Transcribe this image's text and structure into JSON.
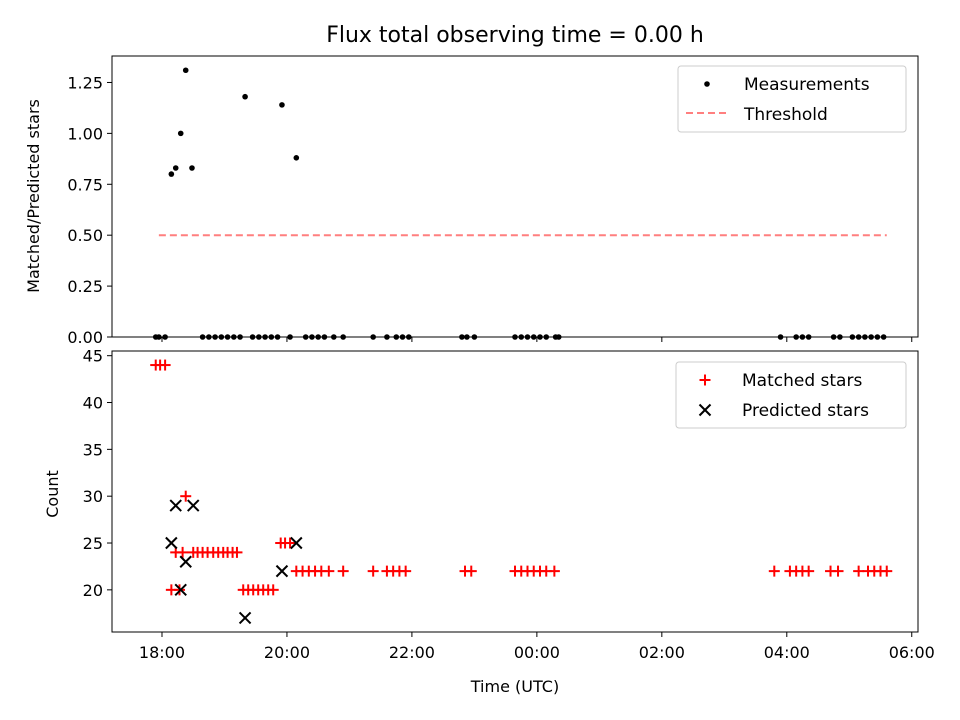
{
  "chart_data": [
    {
      "type": "scatter",
      "title": "Flux total observing time = 0.00 h",
      "ylabel": "Matched/Predicted stars",
      "xlabel": "",
      "xlim_hours": [
        17.2,
        30.1
      ],
      "ylim": [
        0,
        1.38
      ],
      "yticks": [
        0.0,
        0.25,
        0.5,
        0.75,
        1.0,
        1.25
      ],
      "ytick_labels": [
        "0.00",
        "0.25",
        "0.50",
        "0.75",
        "1.00",
        "1.25"
      ],
      "xticks_hours": [
        18,
        20,
        22,
        24,
        26,
        28,
        30
      ],
      "legend": {
        "position": "top-right",
        "entries": [
          "Measurements",
          "Threshold"
        ]
      },
      "colors": {
        "measurements": "#000000",
        "threshold": "#ff7f7f"
      },
      "threshold": {
        "name": "Threshold",
        "x": [
          17.95,
          29.6
        ],
        "y": 0.5
      },
      "series": [
        {
          "name": "Measurements",
          "x": [
            17.9,
            17.95,
            18.05,
            18.15,
            18.22,
            18.3,
            18.38,
            18.48,
            18.65,
            18.75,
            18.85,
            18.95,
            19.05,
            19.15,
            19.25,
            19.33,
            19.45,
            19.55,
            19.65,
            19.75,
            19.85,
            19.92,
            20.05,
            20.15,
            20.3,
            20.4,
            20.5,
            20.6,
            20.75,
            20.9,
            21.38,
            21.6,
            21.75,
            21.85,
            21.95,
            22.8,
            22.88,
            23.0,
            23.65,
            23.75,
            23.85,
            23.95,
            24.05,
            24.15,
            24.3,
            24.35,
            27.9,
            28.15,
            28.25,
            28.35,
            28.75,
            28.85,
            29.05,
            29.15,
            29.25,
            29.35,
            29.45,
            29.55
          ],
          "y": [
            0,
            0,
            0,
            0.8,
            0.83,
            1.0,
            1.31,
            0.83,
            0,
            0,
            0,
            0,
            0,
            0,
            0,
            1.18,
            0,
            0,
            0,
            0,
            0,
            1.14,
            0,
            0.88,
            0,
            0,
            0,
            0,
            0,
            0,
            0,
            0,
            0,
            0,
            0,
            0,
            0,
            0,
            0,
            0,
            0,
            0,
            0,
            0,
            0,
            0,
            0,
            0,
            0,
            0,
            0,
            0,
            0,
            0,
            0,
            0,
            0,
            0
          ]
        }
      ]
    },
    {
      "type": "scatter",
      "title": "",
      "ylabel": "Count",
      "xlabel": "Time (UTC)",
      "xlim_hours": [
        17.2,
        30.1
      ],
      "ylim": [
        15.5,
        45.5
      ],
      "yticks": [
        20,
        25,
        30,
        35,
        40,
        45
      ],
      "ytick_labels": [
        "20",
        "25",
        "30",
        "35",
        "40",
        "45"
      ],
      "xticks_hours": [
        18,
        20,
        22,
        24,
        26,
        28,
        30
      ],
      "xtick_labels": [
        "18:00",
        "20:00",
        "22:00",
        "00:00",
        "02:00",
        "04:00",
        "06:00"
      ],
      "legend": {
        "position": "top-right",
        "entries": [
          "Matched stars",
          "Predicted stars"
        ]
      },
      "colors": {
        "matched": "#ff0000",
        "predicted": "#000000"
      },
      "series": [
        {
          "name": "Matched stars",
          "x": [
            17.9,
            17.97,
            18.05,
            18.15,
            18.22,
            18.28,
            18.33,
            18.38,
            18.5,
            18.57,
            18.65,
            18.73,
            18.82,
            18.9,
            18.98,
            19.05,
            19.13,
            19.2,
            19.3,
            19.38,
            19.46,
            19.54,
            19.62,
            19.7,
            19.78,
            19.9,
            19.97,
            20.05,
            20.15,
            20.25,
            20.35,
            20.45,
            20.55,
            20.67,
            20.9,
            21.38,
            21.6,
            21.7,
            21.8,
            21.9,
            22.85,
            22.95,
            23.65,
            23.75,
            23.85,
            23.95,
            24.05,
            24.15,
            24.28,
            27.8,
            28.05,
            28.15,
            28.25,
            28.35,
            28.7,
            28.82,
            29.15,
            29.3,
            29.4,
            29.5,
            29.6
          ],
          "y": [
            44,
            44,
            44,
            20,
            24,
            20,
            24,
            30,
            24,
            24,
            24,
            24,
            24,
            24,
            24,
            24,
            24,
            24,
            20,
            20,
            20,
            20,
            20,
            20,
            20,
            25,
            25,
            25,
            22,
            22,
            22,
            22,
            22,
            22,
            22,
            22,
            22,
            22,
            22,
            22,
            22,
            22,
            22,
            22,
            22,
            22,
            22,
            22,
            22,
            22,
            22,
            22,
            22,
            22,
            22,
            22,
            22,
            22,
            22,
            22,
            22
          ]
        },
        {
          "name": "Predicted stars",
          "x": [
            18.15,
            18.22,
            18.3,
            18.38,
            18.5,
            19.33,
            19.92,
            20.15
          ],
          "y": [
            25,
            29,
            20,
            23,
            29,
            17,
            22,
            25
          ]
        }
      ]
    }
  ]
}
